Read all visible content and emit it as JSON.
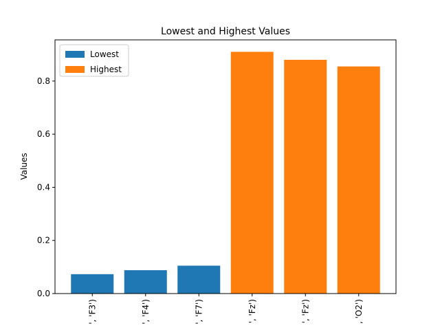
{
  "chart_data": {
    "type": "bar",
    "title": "Lowest and Highest Values",
    "ylabel": "Values",
    "categories": [
      "', 'F3')",
      "', 'F4')",
      "', 'F7')",
      "', 'Fz')",
      "', 'Fz')",
      ", 'O2')"
    ],
    "series": [
      {
        "name": "Lowest",
        "color": "#1f77b4",
        "values": [
          0.073,
          0.088,
          0.105,
          null,
          null,
          null
        ]
      },
      {
        "name": "Highest",
        "color": "#ff7f0e",
        "values": [
          null,
          null,
          null,
          0.91,
          0.88,
          0.855
        ]
      }
    ],
    "ylim": [
      0,
      0.955
    ],
    "yticks": [
      {
        "value": 0,
        "label": "0.0"
      },
      0.2,
      0.4,
      0.6,
      0.8
    ],
    "legend": "upper left"
  }
}
